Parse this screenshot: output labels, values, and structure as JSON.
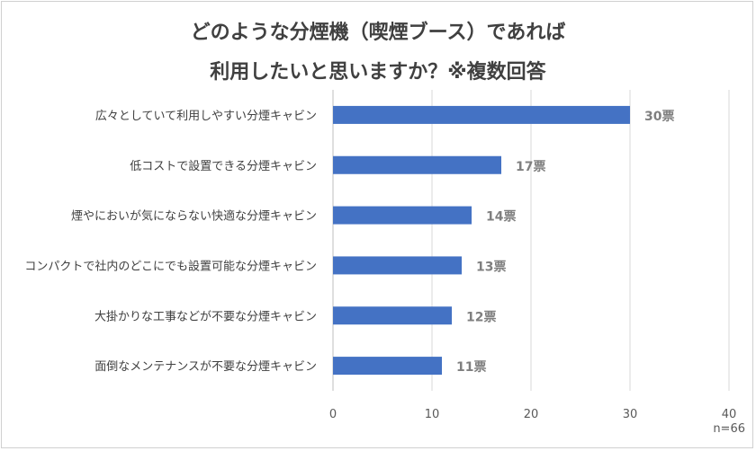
{
  "chart_data": {
    "type": "bar",
    "orientation": "horizontal",
    "title_line1": "どのような分煙機（喫煙ブース）であれば",
    "title_line2": "利用したいと思いますか？※複数回答",
    "categories": [
      "広々としていて利用しやすい分煙キャビン",
      "低コストで設置できる分煙キャビン",
      "煙やにおいが気にならない快適な分煙キャビン",
      "コンパクトで社内のどこにでも設置可能な分煙キャビン",
      "大掛かりな工事などが不要な分煙キャビン",
      "面倒なメンテナンスが不要な分煙キャビン"
    ],
    "values": [
      30,
      17,
      14,
      13,
      12,
      11
    ],
    "data_labels": [
      "30票",
      "17票",
      "14票",
      "13票",
      "12票",
      "11票"
    ],
    "xlim": [
      0,
      40
    ],
    "xticks": [
      "0",
      "10",
      "20",
      "30",
      "40"
    ],
    "grid": true,
    "bar_color": "#4472c4",
    "note": "n=66"
  }
}
